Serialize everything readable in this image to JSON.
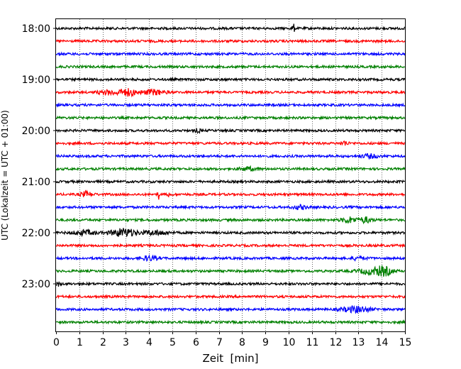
{
  "chart_data": {
    "type": "line",
    "title": "",
    "xlabel": "Zeit  [min]",
    "ylabel": "UTC (Lokalzeit = UTC + 01:00)",
    "xlim": [
      0,
      15
    ],
    "x_ticks": [
      "0",
      "1",
      "2",
      "3",
      "4",
      "5",
      "6",
      "7",
      "8",
      "9",
      "10",
      "11",
      "12",
      "13",
      "14",
      "15"
    ],
    "y_ticks": [
      "18:00",
      "19:00",
      "20:00",
      "21:00",
      "22:00",
      "23:00"
    ],
    "grid": "vertical dotted lines at each minute",
    "trace_colors": [
      "#000000",
      "#ff0000",
      "#0000ff",
      "#008000"
    ],
    "series": [
      {
        "start": "18:00",
        "color": "#000000",
        "events": [
          {
            "t": 10.2,
            "amp": 4,
            "w": 0.06
          }
        ]
      },
      {
        "start": "18:15",
        "color": "#ff0000",
        "events": []
      },
      {
        "start": "18:30",
        "color": "#0000ff",
        "events": []
      },
      {
        "start": "18:45",
        "color": "#008000",
        "events": []
      },
      {
        "start": "19:00",
        "color": "#000000",
        "events": []
      },
      {
        "start": "19:15",
        "color": "#ff0000",
        "events": [
          {
            "t": 2.3,
            "amp": 2.0,
            "w": 0.5
          },
          {
            "t": 3.1,
            "amp": 3.0,
            "w": 0.35
          },
          {
            "t": 4.2,
            "amp": 2.2,
            "w": 0.5
          }
        ]
      },
      {
        "start": "19:30",
        "color": "#0000ff",
        "events": []
      },
      {
        "start": "19:45",
        "color": "#008000",
        "events": []
      },
      {
        "start": "20:00",
        "color": "#000000",
        "events": [
          {
            "t": 6.1,
            "amp": 1.8,
            "w": 0.1
          }
        ]
      },
      {
        "start": "20:15",
        "color": "#ff0000",
        "events": [
          {
            "t": 12.4,
            "amp": 2.0,
            "w": 0.15
          }
        ]
      },
      {
        "start": "20:30",
        "color": "#0000ff",
        "events": [
          {
            "t": 13.5,
            "amp": 1.6,
            "w": 0.35
          }
        ]
      },
      {
        "start": "20:45",
        "color": "#008000",
        "events": [
          {
            "t": 8.3,
            "amp": 1.4,
            "w": 0.4
          }
        ]
      },
      {
        "start": "21:00",
        "color": "#000000",
        "events": []
      },
      {
        "start": "21:15",
        "color": "#ff0000",
        "events": [
          {
            "t": 1.3,
            "amp": 2.2,
            "w": 0.25
          },
          {
            "t": 4.4,
            "amp": 5.0,
            "w": 0.03
          },
          {
            "t": 4.85,
            "amp": 4.0,
            "w": 0.03
          }
        ]
      },
      {
        "start": "21:30",
        "color": "#0000ff",
        "events": [
          {
            "t": 10.5,
            "amp": 1.6,
            "w": 0.3
          }
        ]
      },
      {
        "start": "21:45",
        "color": "#008000",
        "events": [
          {
            "t": 12.6,
            "amp": 2.6,
            "w": 0.3
          },
          {
            "t": 13.3,
            "amp": 2.4,
            "w": 0.3
          }
        ]
      },
      {
        "start": "22:00",
        "color": "#000000",
        "events": [
          {
            "t": 1.2,
            "amp": 2.0,
            "w": 0.5
          },
          {
            "t": 2.9,
            "amp": 3.6,
            "w": 0.55
          },
          {
            "t": 4.3,
            "amp": 2.0,
            "w": 0.5
          }
        ]
      },
      {
        "start": "22:15",
        "color": "#ff0000",
        "events": []
      },
      {
        "start": "22:30",
        "color": "#0000ff",
        "events": [
          {
            "t": 4.0,
            "amp": 2.0,
            "w": 0.35
          },
          {
            "t": 13.0,
            "amp": 1.4,
            "w": 0.3
          }
        ]
      },
      {
        "start": "22:45",
        "color": "#008000",
        "events": [
          {
            "t": 13.5,
            "amp": 2.4,
            "w": 0.5
          },
          {
            "t": 14.1,
            "amp": 3.8,
            "w": 0.35
          }
        ]
      },
      {
        "start": "23:00",
        "color": "#000000",
        "events": [
          {
            "t": 0.1,
            "amp": 1.6,
            "w": 0.1
          }
        ]
      },
      {
        "start": "23:15",
        "color": "#ff0000",
        "events": []
      },
      {
        "start": "23:30",
        "color": "#0000ff",
        "events": [
          {
            "t": 12.9,
            "amp": 2.6,
            "w": 0.6
          }
        ]
      },
      {
        "start": "23:45",
        "color": "#008000",
        "events": []
      }
    ]
  }
}
